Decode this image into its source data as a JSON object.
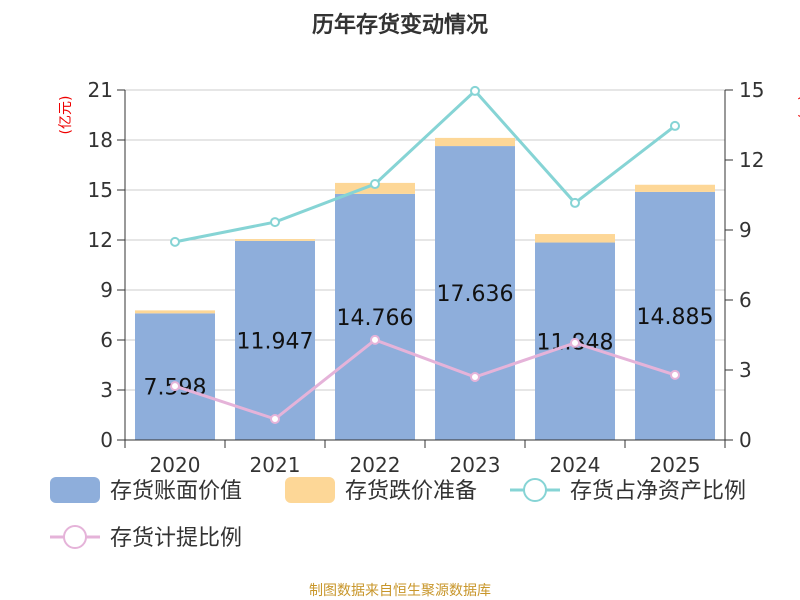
{
  "chart_data": {
    "type": "bar",
    "title": "历年存货变动情况",
    "categories": [
      "2020",
      "2021",
      "2022",
      "2023",
      "2024",
      "2025"
    ],
    "ylabel_left": "(亿元)",
    "ylabel_right": "(%)",
    "ylim_left": [
      0,
      21
    ],
    "yticks_left": [
      0,
      3,
      6,
      9,
      12,
      15,
      18,
      21
    ],
    "ylim_right": [
      0,
      15
    ],
    "yticks_right": [
      0,
      3,
      6,
      9,
      12,
      15
    ],
    "grid": true,
    "legend_position": "bottom",
    "series": [
      {
        "name": "存货账面价值",
        "type": "bar",
        "stack": "a",
        "axis": "left",
        "color": "#8eaedb",
        "values": [
          7.598,
          11.947,
          14.766,
          17.636,
          11.848,
          14.885
        ],
        "labels": [
          "7.598",
          "11.947",
          "14.766",
          "17.636",
          "11.848",
          "14.885"
        ]
      },
      {
        "name": "存货跌价准备",
        "type": "bar",
        "stack": "a",
        "axis": "left",
        "color": "#fdd797",
        "values": [
          0.18,
          0.11,
          0.66,
          0.49,
          0.51,
          0.43
        ]
      },
      {
        "name": "存货占净资产比例",
        "type": "line",
        "axis": "right",
        "color": "#86d4d5",
        "values": [
          8.49,
          9.34,
          10.97,
          14.96,
          10.16,
          13.46
        ]
      },
      {
        "name": "存货计提比例",
        "type": "line",
        "axis": "right",
        "color": "#e5b3d9",
        "values": [
          2.31,
          0.9,
          4.29,
          2.7,
          4.16,
          2.79
        ]
      }
    ],
    "source": "制图数据来自恒生聚源数据库"
  }
}
